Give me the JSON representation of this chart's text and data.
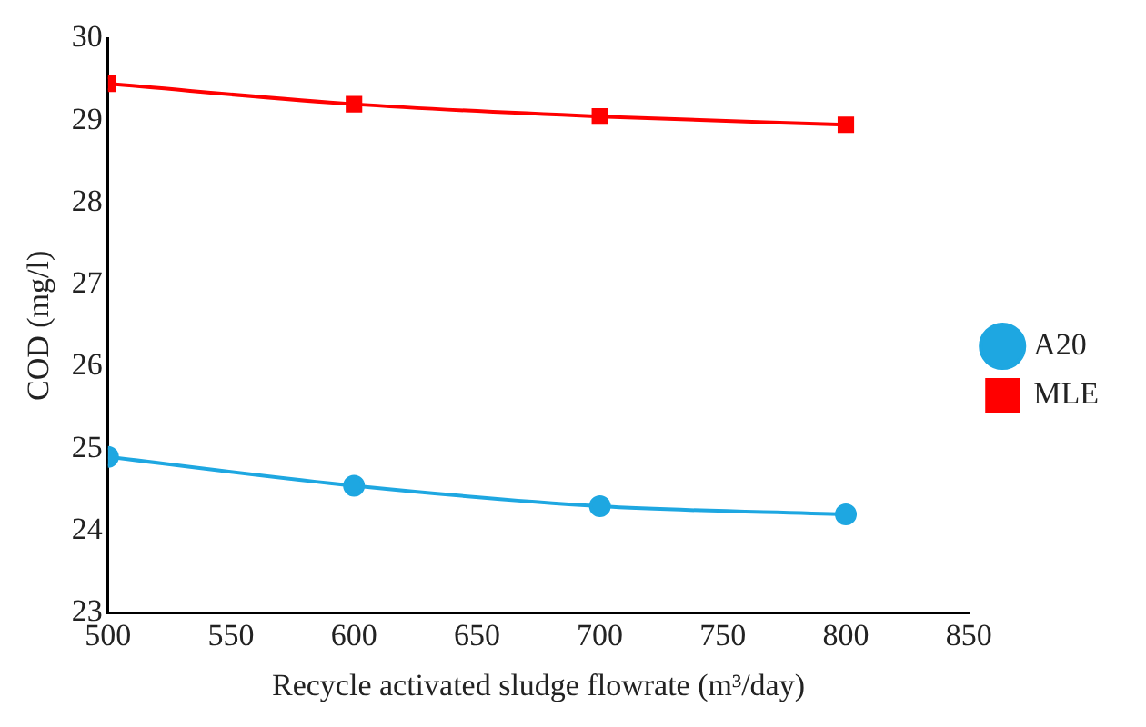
{
  "chart_data": {
    "type": "line",
    "xlabel": "Recycle activated sludge flowrate (m³/day)",
    "ylabel": "COD (mg/l)",
    "series": [
      {
        "name": "A20",
        "color": "#1ea7e1",
        "marker": "circle",
        "x": [
          500,
          600,
          700,
          800
        ],
        "values": [
          24.9,
          24.55,
          24.3,
          24.2
        ]
      },
      {
        "name": "MLE",
        "color": "#ff0000",
        "marker": "square",
        "x": [
          500,
          600,
          700,
          800
        ],
        "values": [
          29.45,
          29.2,
          29.05,
          28.95
        ]
      }
    ],
    "xlim": [
      500,
      850
    ],
    "xticks": [
      500,
      550,
      600,
      650,
      700,
      750,
      800,
      850
    ],
    "ylim": [
      23,
      30
    ],
    "yticks": [
      23,
      24,
      25,
      26,
      27,
      28,
      29,
      30
    ],
    "grid": false,
    "legend": "right",
    "line_style": "solid"
  }
}
